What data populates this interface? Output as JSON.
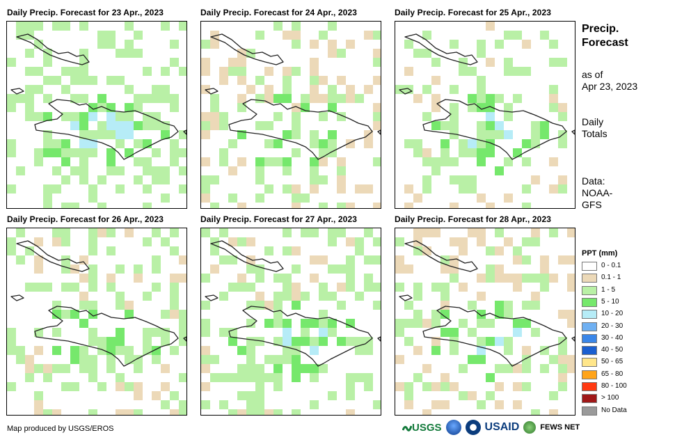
{
  "panels": [
    {
      "title": "Daily Precip. Forecast for 23 Apr., 2023",
      "seed": 11,
      "green_bias": 0.34,
      "tan_bias": 0.3,
      "blue_bias": 0.04
    },
    {
      "title": "Daily Precip. Forecast for 24 Apr., 2023",
      "seed": 23,
      "green_bias": 0.16,
      "tan_bias": 0.34,
      "blue_bias": 0.0
    },
    {
      "title": "Daily Precip. Forecast for 25 Apr., 2023",
      "seed": 37,
      "green_bias": 0.18,
      "tan_bias": 0.26,
      "blue_bias": 0.03
    },
    {
      "title": "Daily Precip. Forecast for 26 Apr., 2023",
      "seed": 41,
      "green_bias": 0.28,
      "tan_bias": 0.4,
      "blue_bias": 0.01
    },
    {
      "title": "Daily Precip. Forecast for 27 Apr., 2023",
      "seed": 53,
      "green_bias": 0.3,
      "tan_bias": 0.38,
      "blue_bias": 0.02
    },
    {
      "title": "Daily Precip. Forecast for 28 Apr., 2023",
      "seed": 67,
      "green_bias": 0.14,
      "tan_bias": 0.34,
      "blue_bias": 0.01
    }
  ],
  "sidebar": {
    "title_line1": "Precip.",
    "title_line2": "Forecast",
    "asof_line1": "as of",
    "asof_line2": "Apr 23, 2023",
    "daily_line1": "Daily",
    "daily_line2": "Totals",
    "data_line1": "Data:",
    "data_line2": "NOAA-",
    "data_line3": "GFS"
  },
  "legend": {
    "title": "PPT (mm)",
    "items": [
      {
        "label": "0 - 0.1",
        "color": "#ffffff"
      },
      {
        "label": "0.1 - 1",
        "color": "#ecd9b8"
      },
      {
        "label": "1 - 5",
        "color": "#b9f0a6"
      },
      {
        "label": "5 - 10",
        "color": "#76e86c"
      },
      {
        "label": "10 - 20",
        "color": "#b6ecf7"
      },
      {
        "label": "20 - 30",
        "color": "#6fb0f2"
      },
      {
        "label": "30 - 40",
        "color": "#3a86e8"
      },
      {
        "label": "40 - 50",
        "color": "#1a5fd0"
      },
      {
        "label": "50 - 65",
        "color": "#ffe68a"
      },
      {
        "label": "65 - 80",
        "color": "#ffa41a"
      },
      {
        "label": "80 - 100",
        "color": "#ff3a12"
      },
      {
        "label": "> 100",
        "color": "#a01818"
      },
      {
        "label": "No Data",
        "color": "#9a9a9a"
      }
    ]
  },
  "footer": {
    "credit": "Map produced by USGS/EROS",
    "logo_usgs": "USGS",
    "logo_usaid": "USAID",
    "logo_fews": "FEWS NET"
  }
}
